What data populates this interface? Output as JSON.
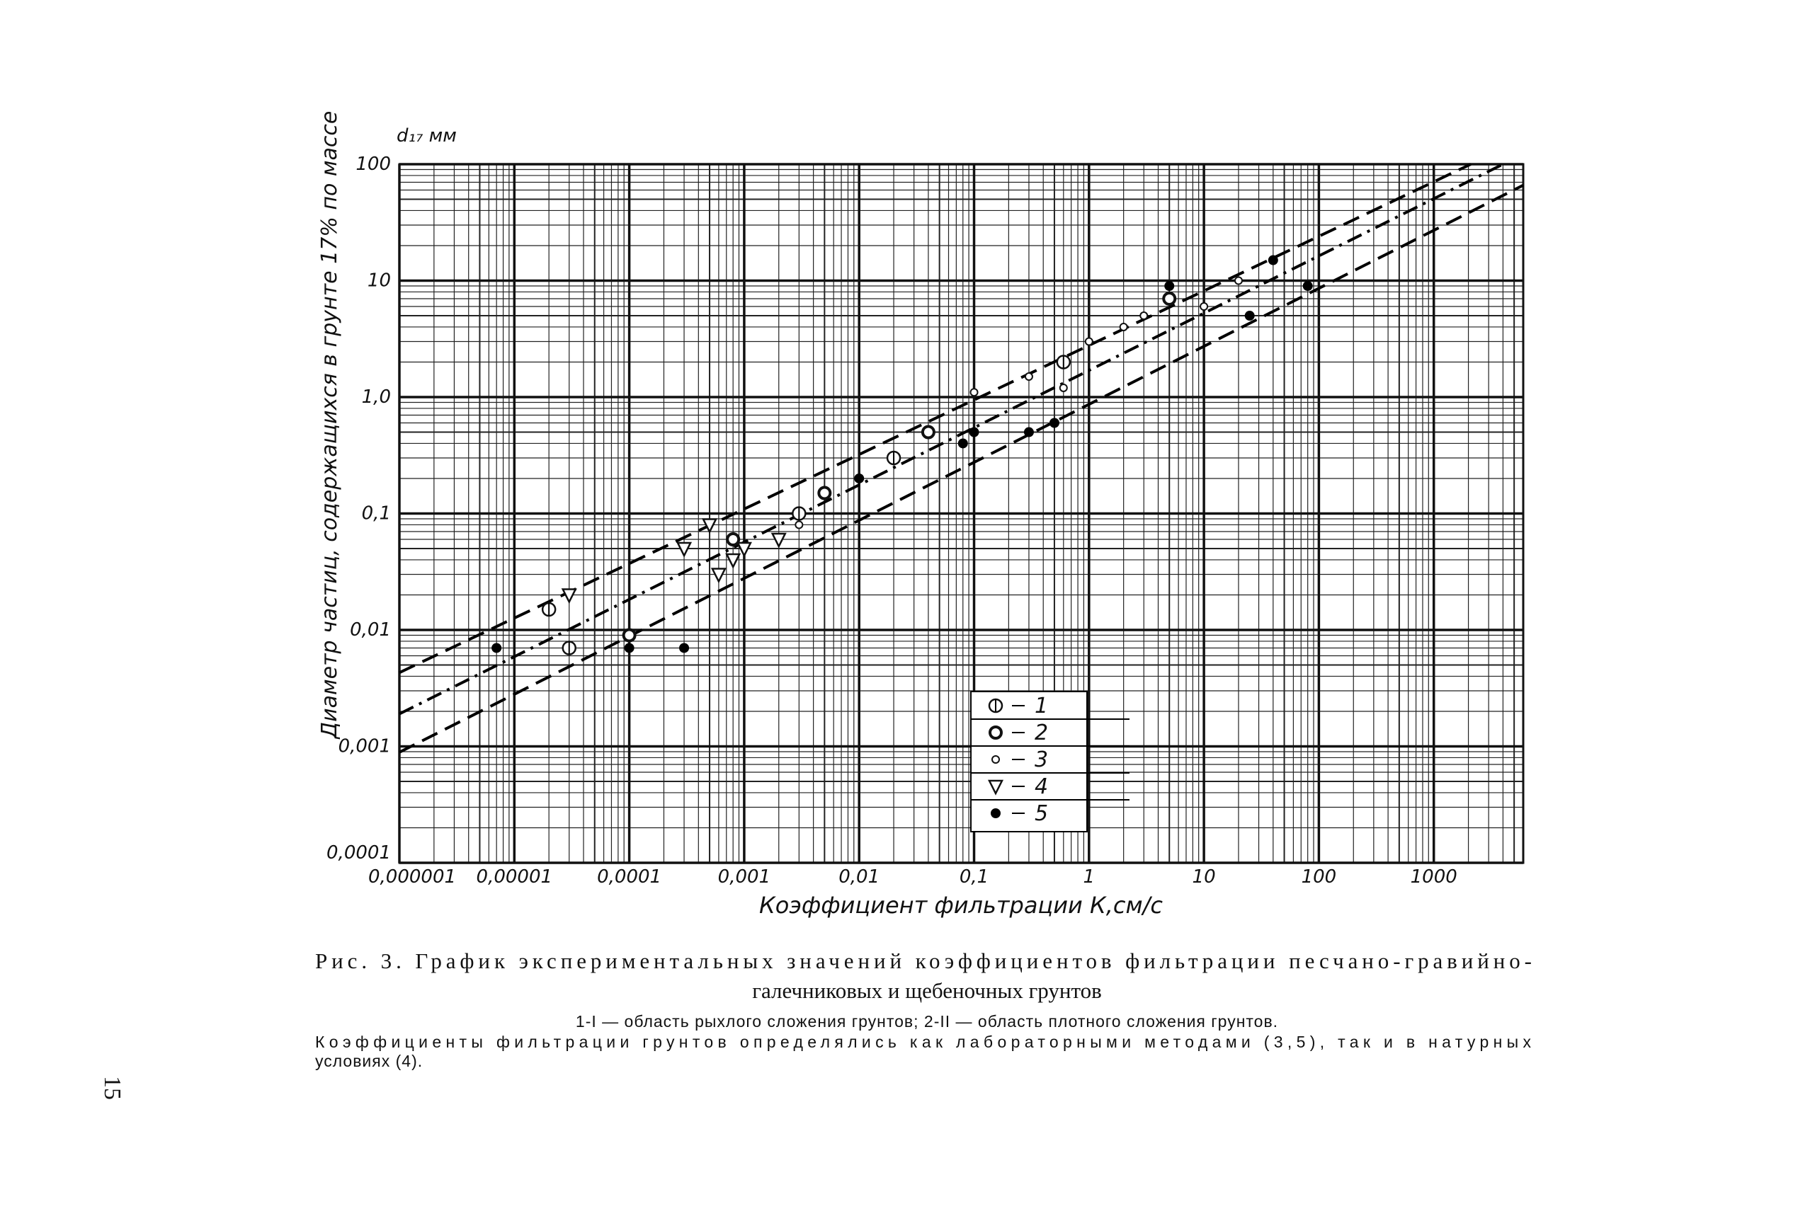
{
  "chart_data": {
    "type": "scatter",
    "x_label": "Коэффициент фильтрации К,см/с",
    "y_label": "Диаметр частиц, содержащихся в грунте 17% по массе",
    "y_unit": "d₁₇ мм",
    "log_x": true,
    "log_y": true,
    "grid": true,
    "xlim": [
      1e-06,
      6000
    ],
    "ylim": [
      0.0001,
      100
    ],
    "xticks": [
      {
        "value": 1e-06,
        "label": "0,000001"
      },
      {
        "value": 1e-05,
        "label": "0,00001"
      },
      {
        "value": 0.0001,
        "label": "0,0001"
      },
      {
        "value": 0.001,
        "label": "0,001"
      },
      {
        "value": 0.01,
        "label": "0,01"
      },
      {
        "value": 0.1,
        "label": "0,1"
      },
      1,
      10,
      100,
      1000
    ],
    "yticks": [
      {
        "value": 0.0001,
        "label": "0,0001"
      },
      {
        "value": 0.001,
        "label": "0,001"
      },
      {
        "value": 0.01,
        "label": "0,01"
      },
      {
        "value": 0.1,
        "label": "0,1"
      },
      {
        "value": 1,
        "label": "1,0"
      },
      10,
      100
    ],
    "lines": [
      {
        "style": "dashed",
        "x": [
          1e-06,
          2100
        ],
        "values": [
          0.0043,
          100
        ]
      },
      {
        "style": "dashdot",
        "x": [
          1e-06,
          4000
        ],
        "values": [
          0.0019,
          100
        ]
      },
      {
        "style": "dashed",
        "x": [
          1e-06,
          6000
        ],
        "values": [
          0.00089,
          66
        ]
      }
    ],
    "series": [
      {
        "name": "1",
        "marker": "crossed",
        "color": "#111",
        "x": [
          2e-05,
          3e-05,
          0.003,
          0.02,
          0.6
        ],
        "values": [
          0.015,
          0.007,
          0.1,
          0.3,
          2
        ]
      },
      {
        "name": "2",
        "marker": "ring",
        "color": "#111",
        "x": [
          0.0001,
          0.0008,
          0.005,
          0.04,
          5
        ],
        "values": [
          0.009,
          0.06,
          0.15,
          0.5,
          7
        ]
      },
      {
        "name": "3",
        "marker": "small",
        "color": "#111",
        "x": [
          0.003,
          0.01,
          0.1,
          0.3,
          1,
          2,
          3,
          10,
          20,
          0.6
        ],
        "values": [
          0.08,
          0.2,
          1.1,
          1.5,
          3,
          4,
          5,
          6,
          10,
          1.2
        ]
      },
      {
        "name": "4",
        "marker": "triangle",
        "color": "#111",
        "x": [
          3e-05,
          0.0003,
          0.0006,
          0.0008,
          0.001,
          0.002,
          0.0005
        ],
        "values": [
          0.02,
          0.05,
          0.03,
          0.04,
          0.05,
          0.06,
          0.08
        ]
      },
      {
        "name": "5",
        "marker": "filled",
        "color": "#111",
        "x": [
          7e-06,
          0.0001,
          0.0003,
          0.01,
          0.1,
          0.08,
          0.3,
          0.5,
          5,
          40,
          80,
          25
        ],
        "values": [
          0.007,
          0.007,
          0.007,
          0.2,
          0.5,
          0.4,
          0.5,
          0.6,
          9,
          15,
          9,
          5
        ]
      }
    ]
  },
  "caption": [
    "Рис. 3. График экспериментальных значений коэффициентов фильтрации песчано-гравийно-",
    "галечниковых и щебеночных грунтов"
  ],
  "notes": [
    "1-I — область рыхлого сложения грунтов; 2-II — область плотного сложения грунтов.",
    "Коэффициенты фильтрации грунтов определялись как лабораторными методами (3,5), так и в натурных",
    "условиях (4)."
  ],
  "page_number": "15"
}
